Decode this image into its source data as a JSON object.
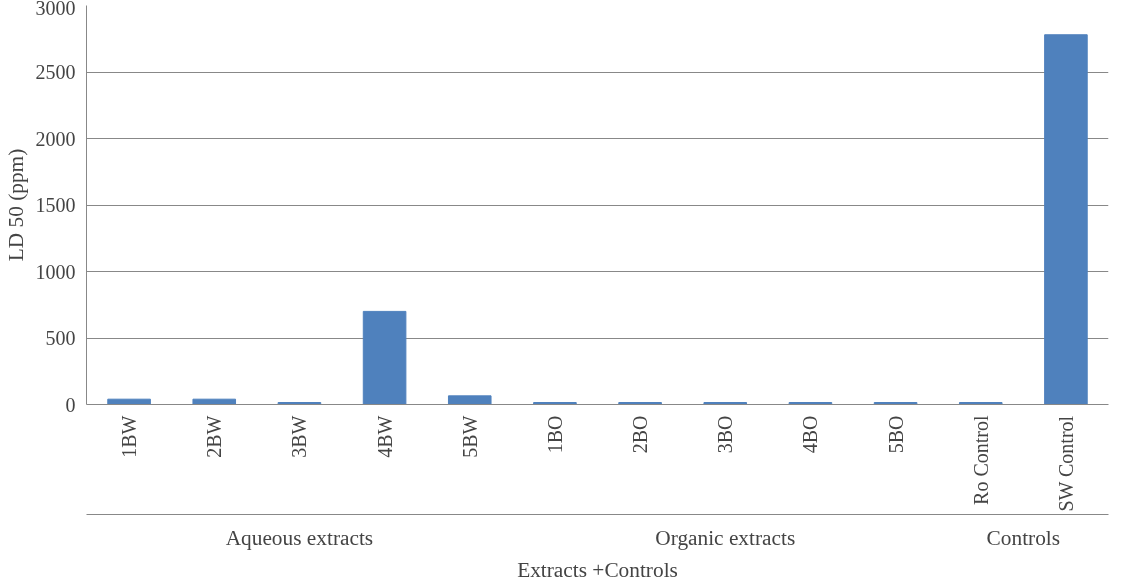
{
  "chart_data": {
    "type": "bar",
    "xlabel": "Extracts +Controls",
    "ylabel": "LD 50 (ppm)",
    "categories": [
      "1BW",
      "2BW",
      "3BW",
      "4BW",
      "5BW",
      "1BO",
      "2BO",
      "3BO",
      "4BO",
      "5BO",
      "Ro Control",
      "SW Control"
    ],
    "values": [
      40,
      40,
      15,
      700,
      65,
      15,
      15,
      15,
      15,
      15,
      15,
      2780
    ],
    "color": "#4f81bd",
    "ylim": [
      0,
      3000
    ],
    "yticks": [
      0,
      500,
      1000,
      1500,
      2000,
      2500,
      3000
    ],
    "grid": "y",
    "annotations": [
      "Aqueous extracts",
      "Organic extracts",
      "Controls"
    ]
  }
}
